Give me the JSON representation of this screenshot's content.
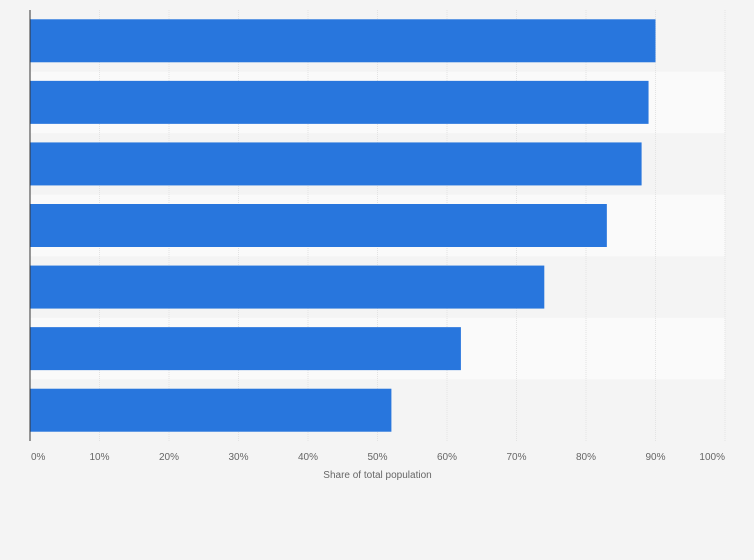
{
  "chart_data": {
    "type": "bar",
    "orientation": "horizontal",
    "categories": [
      "",
      "",
      "",
      "",
      "",
      "",
      ""
    ],
    "values": [
      90,
      89,
      88,
      83,
      74,
      62,
      52
    ],
    "xlim": [
      0,
      100
    ],
    "xticks": [
      "0%",
      "10%",
      "20%",
      "30%",
      "40%",
      "50%",
      "60%",
      "70%",
      "80%",
      "90%",
      "100%"
    ],
    "xlabel": "Share of total population",
    "ylabel": "",
    "title": "",
    "grid": true,
    "legend": "none",
    "colors": {
      "bar": "#2876dd",
      "background": "#f4f4f4",
      "band_alt": "#fafafa",
      "grid": "#e3e3e3",
      "axis": "#333333",
      "text": "#666666"
    }
  }
}
